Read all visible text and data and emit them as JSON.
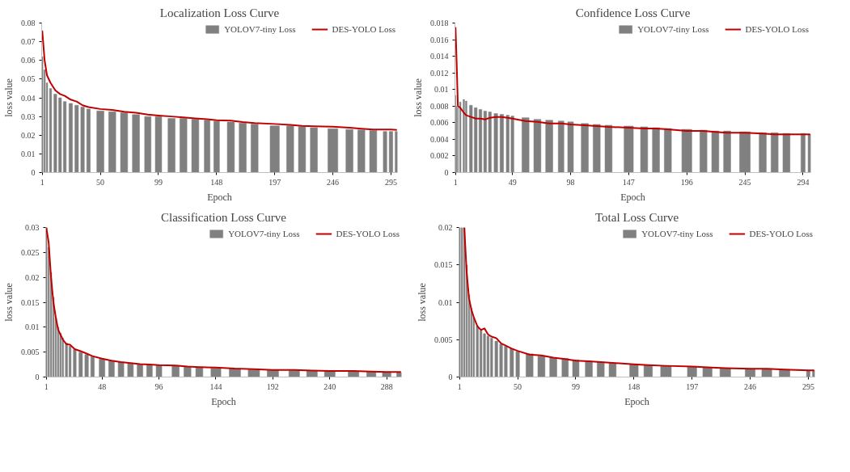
{
  "chart_data": [
    {
      "type": "bar",
      "title": "Localization Loss Curve",
      "xlabel": "Epoch",
      "ylabel": "loss value",
      "xlim": [
        0.5,
        300.5
      ],
      "xticks": [
        1,
        50,
        99,
        148,
        197,
        246,
        295
      ],
      "ylim": [
        0,
        0.08
      ],
      "yticks": [
        0,
        0.01,
        0.02,
        0.03,
        0.04,
        0.05,
        0.06,
        0.07,
        0.08
      ],
      "grid": false,
      "legend": "top right",
      "series": [
        {
          "name": "YOLOV7-tiny Loss",
          "color": "#808080",
          "x": [
            1,
            3,
            5,
            8,
            12,
            16,
            20,
            25,
            30,
            35,
            40,
            50,
            60,
            70,
            80,
            90,
            99,
            110,
            120,
            130,
            140,
            148,
            160,
            170,
            180,
            197,
            210,
            220,
            230,
            246,
            260,
            270,
            280,
            290,
            295,
            300
          ],
          "values": [
            0.062,
            0.055,
            0.048,
            0.045,
            0.042,
            0.04,
            0.038,
            0.037,
            0.036,
            0.035,
            0.034,
            0.033,
            0.0325,
            0.032,
            0.031,
            0.03,
            0.03,
            0.029,
            0.029,
            0.0285,
            0.028,
            0.0275,
            0.027,
            0.0265,
            0.026,
            0.025,
            0.025,
            0.0245,
            0.024,
            0.0235,
            0.023,
            0.0228,
            0.0225,
            0.022,
            0.022,
            0.022
          ]
        },
        {
          "name": "DES-YOLO Loss",
          "type": "line",
          "color": "#c00000",
          "x": [
            1,
            3,
            5,
            8,
            12,
            16,
            20,
            25,
            30,
            35,
            40,
            50,
            60,
            70,
            80,
            90,
            99,
            110,
            120,
            130,
            140,
            148,
            160,
            170,
            180,
            197,
            210,
            220,
            230,
            246,
            260,
            270,
            280,
            290,
            295,
            300
          ],
          "values": [
            0.076,
            0.06,
            0.052,
            0.048,
            0.044,
            0.042,
            0.041,
            0.039,
            0.038,
            0.036,
            0.035,
            0.034,
            0.0335,
            0.0325,
            0.032,
            0.031,
            0.0305,
            0.03,
            0.0295,
            0.029,
            0.0285,
            0.028,
            0.0278,
            0.027,
            0.0265,
            0.026,
            0.0255,
            0.025,
            0.0248,
            0.0245,
            0.024,
            0.0235,
            0.023,
            0.023,
            0.023,
            0.0228
          ]
        }
      ]
    },
    {
      "type": "bar",
      "title": "Confidence Loss Curve",
      "xlabel": "Epoch",
      "ylabel": "loss value",
      "xlim": [
        0.5,
        300.5
      ],
      "xticks": [
        1,
        49,
        98,
        147,
        196,
        245,
        294
      ],
      "ylim": [
        0,
        0.018
      ],
      "yticks": [
        0,
        0.002,
        0.004,
        0.006,
        0.008,
        0.01,
        0.012,
        0.014,
        0.016,
        0.018
      ],
      "grid": false,
      "legend": "top right",
      "series": [
        {
          "name": "YOLOV7-tiny Loss",
          "color": "#808080",
          "x": [
            1,
            2,
            3,
            5,
            8,
            10,
            14,
            18,
            22,
            26,
            30,
            35,
            40,
            45,
            49,
            60,
            70,
            80,
            90,
            98,
            110,
            120,
            130,
            147,
            160,
            170,
            180,
            196,
            210,
            220,
            230,
            245,
            260,
            270,
            280,
            294,
            300
          ],
          "values": [
            0.0093,
            0.008,
            0.0078,
            0.0085,
            0.0088,
            0.0086,
            0.0081,
            0.0078,
            0.0076,
            0.0074,
            0.0073,
            0.0071,
            0.007,
            0.0069,
            0.0068,
            0.0066,
            0.0064,
            0.0063,
            0.0062,
            0.0061,
            0.0059,
            0.0058,
            0.0057,
            0.0056,
            0.0055,
            0.0054,
            0.0053,
            0.0052,
            0.0051,
            0.005,
            0.005,
            0.0049,
            0.0048,
            0.0048,
            0.0047,
            0.0047,
            0.0046
          ]
        },
        {
          "name": "DES-YOLO Loss",
          "type": "line",
          "color": "#c00000",
          "x": [
            1,
            2,
            3,
            5,
            8,
            10,
            14,
            18,
            22,
            26,
            30,
            35,
            40,
            45,
            49,
            60,
            70,
            80,
            90,
            98,
            110,
            120,
            130,
            147,
            160,
            170,
            180,
            196,
            210,
            220,
            230,
            245,
            260,
            270,
            280,
            294,
            300
          ],
          "values": [
            0.0175,
            0.013,
            0.008,
            0.0078,
            0.0072,
            0.0069,
            0.0067,
            0.0065,
            0.0065,
            0.0064,
            0.0066,
            0.0067,
            0.0067,
            0.0066,
            0.0065,
            0.0062,
            0.0061,
            0.0059,
            0.0059,
            0.0058,
            0.0057,
            0.0056,
            0.0055,
            0.0054,
            0.0053,
            0.0053,
            0.0052,
            0.005,
            0.005,
            0.0049,
            0.0048,
            0.0048,
            0.0047,
            0.0046,
            0.0046,
            0.0046,
            0.0046
          ]
        }
      ]
    },
    {
      "type": "bar",
      "title": "Classification Loss Curve",
      "xlabel": "Epoch",
      "ylabel": "loss value",
      "xlim": [
        0.5,
        300.5
      ],
      "xticks": [
        1,
        48,
        96,
        144,
        192,
        240,
        288
      ],
      "ylim": [
        0,
        0.03
      ],
      "yticks": [
        0,
        0.005,
        0.01,
        0.015,
        0.02,
        0.025,
        0.03
      ],
      "grid": false,
      "legend": "top right",
      "series": [
        {
          "name": "YOLOV7-tiny Loss",
          "color": "#808080",
          "x": [
            1,
            3,
            5,
            7,
            9,
            11,
            13,
            15,
            18,
            21,
            25,
            30,
            35,
            40,
            48,
            56,
            64,
            72,
            80,
            88,
            96,
            110,
            120,
            130,
            144,
            160,
            176,
            192,
            210,
            225,
            240,
            260,
            275,
            288,
            300
          ],
          "values": [
            0.03,
            0.026,
            0.021,
            0.016,
            0.012,
            0.01,
            0.0088,
            0.0078,
            0.0068,
            0.0062,
            0.0055,
            0.005,
            0.0045,
            0.0041,
            0.0036,
            0.0033,
            0.003,
            0.0028,
            0.0026,
            0.0025,
            0.0024,
            0.0022,
            0.0021,
            0.002,
            0.0018,
            0.0017,
            0.0015,
            0.0014,
            0.0013,
            0.0013,
            0.0012,
            0.0011,
            0.0011,
            0.001,
            0.0009
          ]
        },
        {
          "name": "DES-YOLO Loss",
          "type": "line",
          "color": "#c00000",
          "x": [
            1,
            3,
            5,
            7,
            9,
            11,
            13,
            15,
            18,
            21,
            25,
            30,
            35,
            40,
            48,
            56,
            64,
            72,
            80,
            88,
            96,
            110,
            120,
            130,
            144,
            160,
            176,
            192,
            210,
            225,
            240,
            260,
            275,
            288,
            300
          ],
          "values": [
            0.03,
            0.027,
            0.02,
            0.015,
            0.012,
            0.0095,
            0.0085,
            0.0075,
            0.0066,
            0.0065,
            0.0056,
            0.0052,
            0.0047,
            0.0042,
            0.0037,
            0.0033,
            0.003,
            0.0028,
            0.0026,
            0.0025,
            0.0024,
            0.0023,
            0.0021,
            0.002,
            0.0019,
            0.0017,
            0.0016,
            0.0014,
            0.0014,
            0.0013,
            0.0012,
            0.0012,
            0.0011,
            0.001,
            0.001
          ]
        }
      ]
    },
    {
      "type": "bar",
      "title": "Total Loss Curve",
      "xlabel": "Epoch",
      "ylabel": "loss value",
      "xlim": [
        0.5,
        300.5
      ],
      "xticks": [
        1,
        50,
        99,
        148,
        197,
        246,
        295
      ],
      "ylim": [
        0,
        0.02
      ],
      "yticks": [
        0,
        0.005,
        0.01,
        0.015,
        0.02
      ],
      "grid": false,
      "legend": "top right",
      "series": [
        {
          "name": "YOLOV7-tiny Loss",
          "color": "#808080",
          "x": [
            1,
            3,
            5,
            7,
            9,
            11,
            13,
            16,
            19,
            22,
            25,
            28,
            32,
            36,
            40,
            45,
            50,
            60,
            70,
            80,
            90,
            99,
            110,
            120,
            130,
            148,
            160,
            175,
            197,
            210,
            225,
            246,
            260,
            275,
            295,
            300
          ],
          "values": [
            0.02,
            0.02,
            0.02,
            0.015,
            0.011,
            0.0092,
            0.008,
            0.0068,
            0.0062,
            0.0058,
            0.0055,
            0.0052,
            0.0048,
            0.0044,
            0.0041,
            0.0038,
            0.0034,
            0.0031,
            0.0028,
            0.0026,
            0.0025,
            0.0023,
            0.0021,
            0.002,
            0.0019,
            0.0017,
            0.0016,
            0.0015,
            0.0014,
            0.0013,
            0.0012,
            0.0011,
            0.0011,
            0.001,
            0.0009,
            0.0009
          ]
        },
        {
          "name": "DES-YOLO Loss",
          "type": "line",
          "color": "#c00000",
          "x": [
            5,
            7,
            9,
            11,
            13,
            16,
            19,
            22,
            25,
            28,
            32,
            36,
            40,
            45,
            50,
            60,
            70,
            80,
            90,
            99,
            110,
            120,
            130,
            148,
            160,
            175,
            197,
            210,
            225,
            246,
            260,
            275,
            295,
            300
          ],
          "values": [
            0.02,
            0.014,
            0.0105,
            0.009,
            0.008,
            0.0068,
            0.0063,
            0.0065,
            0.0057,
            0.0054,
            0.0052,
            0.0045,
            0.0042,
            0.0038,
            0.0035,
            0.003,
            0.0029,
            0.0026,
            0.0024,
            0.0022,
            0.0021,
            0.002,
            0.0019,
            0.0017,
            0.0016,
            0.0015,
            0.0014,
            0.0013,
            0.0012,
            0.0011,
            0.0011,
            0.001,
            0.0009,
            0.0009
          ]
        }
      ]
    }
  ]
}
